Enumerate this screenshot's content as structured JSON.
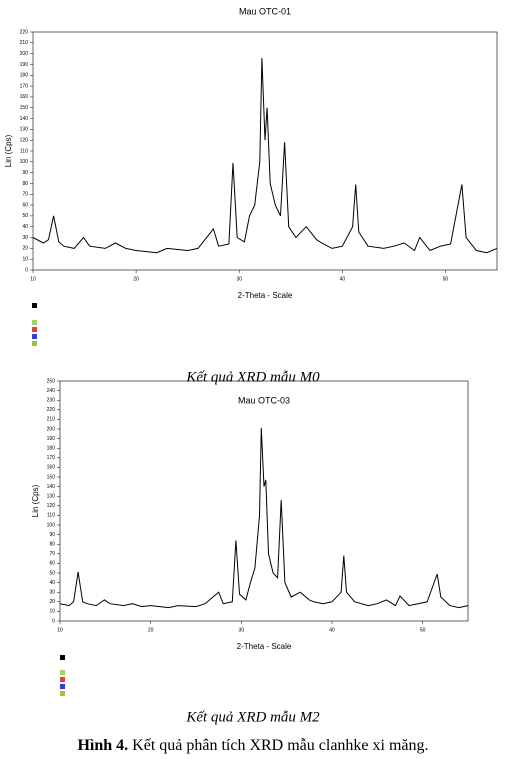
{
  "chart_data": [
    {
      "type": "line",
      "title": "Mau OTC-01",
      "x_label": "2-Theta - Scale",
      "y_label": "Lin (Cps)",
      "x": [
        10,
        11,
        11.5,
        12,
        12.5,
        13,
        14,
        14.9,
        15.5,
        17,
        18,
        19,
        20,
        22,
        23,
        25,
        26,
        27.5,
        28,
        29,
        29.4,
        29.8,
        30.5,
        31,
        31.5,
        32,
        32.2,
        32.5,
        32.7,
        33,
        33.5,
        34,
        34.4,
        34.8,
        35.5,
        36.5,
        37.5,
        38,
        39,
        40,
        41,
        41.3,
        41.6,
        42.5,
        44,
        45,
        46,
        47,
        47.5,
        48.5,
        49.5,
        50.5,
        51.6,
        52,
        53,
        54,
        55
      ],
      "series": [
        {
          "color": "#000000",
          "values": [
            30,
            25,
            28,
            50,
            26,
            22,
            20,
            30,
            22,
            20,
            25,
            20,
            18,
            16,
            20,
            18,
            20,
            38,
            22,
            24,
            99,
            30,
            26,
            50,
            60,
            100,
            196,
            120,
            150,
            80,
            60,
            50,
            118,
            40,
            30,
            40,
            28,
            25,
            20,
            22,
            40,
            79,
            35,
            22,
            20,
            22,
            25,
            18,
            30,
            18,
            22,
            24,
            79,
            30,
            18,
            16,
            20
          ]
        }
      ],
      "xlim": [
        10,
        55
      ],
      "xticks": [
        10,
        20,
        30,
        40,
        50
      ],
      "ylim": [
        0,
        220
      ],
      "yticks": [
        0,
        10,
        20,
        30,
        40,
        50,
        60,
        70,
        80,
        90,
        100,
        110,
        120,
        130,
        140,
        150,
        160,
        170,
        180,
        190,
        200,
        210,
        220
      ],
      "caption": "Kết quả XRD mẫu M0"
    },
    {
      "type": "line",
      "title": "Mau OTC-03",
      "x_label": "2-Theta - Scale",
      "y_label": "Lin (Cps)",
      "x": [
        10,
        11,
        11.5,
        12,
        12.5,
        13,
        14,
        14.9,
        15.5,
        17,
        18,
        19,
        20,
        22,
        23,
        25,
        26,
        27.5,
        28,
        29,
        29.4,
        29.8,
        30.5,
        31,
        31.5,
        32,
        32.2,
        32.5,
        32.7,
        33,
        33.5,
        34,
        34.4,
        34.8,
        35.5,
        36.5,
        37.5,
        38,
        39,
        40,
        41,
        41.3,
        41.6,
        42.5,
        44,
        45,
        46,
        47,
        47.5,
        48.5,
        49.5,
        50.5,
        51.6,
        52,
        53,
        54,
        55
      ],
      "series": [
        {
          "color": "#000000",
          "values": [
            18,
            16,
            20,
            51,
            20,
            18,
            16,
            22,
            18,
            16,
            18,
            15,
            16,
            14,
            16,
            15,
            18,
            30,
            18,
            20,
            84,
            28,
            22,
            40,
            55,
            110,
            201,
            140,
            147,
            70,
            50,
            45,
            126,
            40,
            25,
            30,
            22,
            20,
            18,
            20,
            30,
            68,
            30,
            20,
            16,
            18,
            22,
            16,
            26,
            16,
            18,
            20,
            49,
            25,
            16,
            14,
            16
          ]
        }
      ],
      "xlim": [
        10,
        55
      ],
      "xticks": [
        10,
        20,
        30,
        40,
        50
      ],
      "ylim": [
        0,
        250
      ],
      "yticks": [
        0,
        10,
        20,
        30,
        40,
        50,
        60,
        70,
        80,
        90,
        100,
        110,
        120,
        130,
        140,
        150,
        160,
        170,
        180,
        190,
        200,
        210,
        220,
        230,
        240,
        250
      ],
      "caption": "Kết quả XRD mẫu M2"
    }
  ],
  "figure_caption": {
    "label": "Hình 4.",
    "text": "Kết quả phân tích XRD mẫu clanhke xi măng."
  }
}
